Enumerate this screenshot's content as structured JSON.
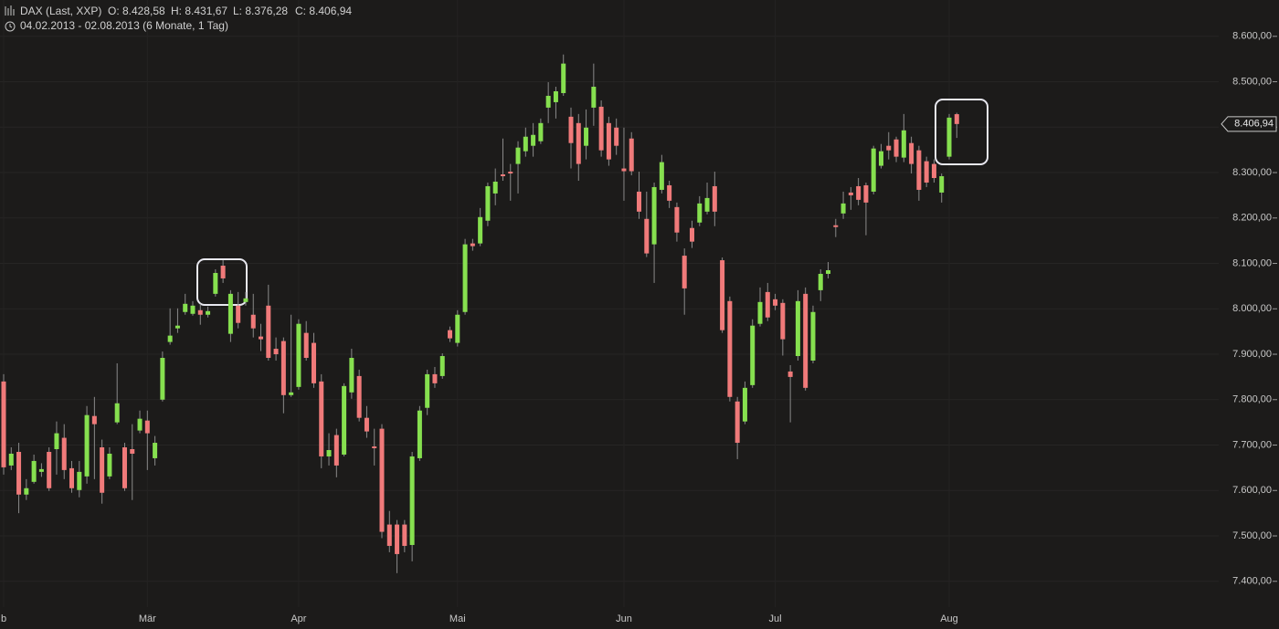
{
  "chart_data": {
    "type": "candlestick",
    "title": "DAX (Last, XXP)",
    "quote_labels": [
      "O: 8.428,58",
      "H: 8.431,67",
      "L: 8.376,28",
      "C: 8.406,94"
    ],
    "subtitle": "04.02.2013 - 02.08.2013 (6 Monate, 1 Tag)",
    "last_label": "8.406,94",
    "up_color": "#86e04f",
    "down_color": "#f07a7a",
    "wick_color": "#8a8a8a",
    "grid": true,
    "ylim": [
      7295,
      8680
    ],
    "yticks": [
      {
        "value": 7400,
        "label": "7.400,00"
      },
      {
        "value": 7500,
        "label": "7.500,00"
      },
      {
        "value": 7600,
        "label": "7.600,00"
      },
      {
        "value": 7700,
        "label": "7.700,00"
      },
      {
        "value": 7800,
        "label": "7.800,00"
      },
      {
        "value": 7900,
        "label": "7.900,00"
      },
      {
        "value": 8000,
        "label": "8.000,00"
      },
      {
        "value": 8100,
        "label": "8.100,00"
      },
      {
        "value": 8200,
        "label": "8.200,00"
      },
      {
        "value": 8300,
        "label": "8.300,00"
      },
      {
        "value": 8400,
        "label": "8.400,00"
      },
      {
        "value": 8500,
        "label": "8.500,00"
      },
      {
        "value": 8600,
        "label": "8.600,00"
      }
    ],
    "categories": [
      "b",
      null,
      null,
      null,
      null,
      null,
      null,
      null,
      null,
      null,
      null,
      null,
      null,
      null,
      null,
      null,
      null,
      null,
      null,
      "Mär",
      null,
      null,
      null,
      null,
      null,
      null,
      null,
      null,
      null,
      null,
      null,
      null,
      null,
      null,
      null,
      null,
      null,
      null,
      null,
      "Apr",
      null,
      null,
      null,
      null,
      null,
      null,
      null,
      null,
      null,
      null,
      null,
      null,
      null,
      null,
      null,
      null,
      null,
      null,
      null,
      null,
      "Mai",
      null,
      null,
      null,
      null,
      null,
      null,
      null,
      null,
      null,
      null,
      null,
      null,
      null,
      null,
      null,
      null,
      null,
      null,
      null,
      null,
      null,
      "Jun",
      null,
      null,
      null,
      null,
      null,
      null,
      null,
      null,
      null,
      null,
      null,
      null,
      null,
      null,
      null,
      null,
      null,
      null,
      null,
      "Jul",
      null,
      null,
      null,
      null,
      null,
      null,
      null,
      null,
      null,
      null,
      null,
      null,
      null,
      null,
      null,
      null,
      null,
      null,
      null,
      null,
      null,
      null,
      "Aug",
      null
    ],
    "open": [
      7840,
      7655,
      7685,
      7591,
      7619,
      7641,
      7685,
      7691,
      7716,
      7649,
      7601,
      7631,
      7764,
      7695,
      7631,
      7750,
      7695,
      7691,
      7732,
      7754,
      7671,
      7800,
      7927,
      7957,
      7993,
      7989,
      7997,
      7987,
      8033,
      8095,
      7945,
      8007,
      8015,
      7987,
      7939,
      8007,
      7912,
      7929,
      7810,
      7828,
      7947,
      7925,
      7840,
      7675,
      7722,
      7679,
      7816,
      7852,
      7760,
      7697,
      7736,
      7525,
      7525,
      7525,
      7480,
      7671,
      7782,
      7856,
      7852,
      7953,
      7925,
      7993,
      8144,
      8144,
      8194,
      8254,
      8296,
      8302,
      8319,
      8347,
      8359,
      8369,
      8443,
      8455,
      8475,
      8423,
      8409,
      8359,
      8443,
      8445,
      8409,
      8399,
      8309,
      8375,
      8258,
      8198,
      8142,
      8262,
      8272,
      8224,
      8117,
      8178,
      8190,
      8214,
      8270,
      8107,
      8017,
      7796,
      7752,
      7832,
      7967,
      8037,
      8021,
      8013,
      7862,
      7896,
      8033,
      7886,
      8041,
      8077,
      8184,
      8210,
      8256,
      8270,
      8272,
      8258,
      8315,
      8359,
      8373,
      8333,
      8365,
      8349,
      8325,
      8319,
      8256,
      8335,
      8428.58
    ],
    "high": [
      7856,
      7695,
      7705,
      7625,
      7679,
      7660,
      7695,
      7752,
      7746,
      7665,
      7665,
      7786,
      7806,
      7712,
      7695,
      7880,
      7705,
      7746,
      7776,
      7776,
      7720,
      7906,
      8001,
      8001,
      8033,
      8017,
      8011,
      8005,
      8087,
      8107,
      8041,
      8037,
      8037,
      8033,
      7967,
      8053,
      7937,
      7937,
      7987,
      7977,
      7973,
      7947,
      7856,
      7726,
      7736,
      7836,
      7912,
      7866,
      7786,
      7736,
      7746,
      7555,
      7535,
      7535,
      7685,
      7786,
      7866,
      7872,
      7902,
      7961,
      7997,
      8154,
      8154,
      8222,
      8278,
      8309,
      8375,
      8319,
      8369,
      8399,
      8409,
      8419,
      8499,
      8489,
      8560,
      8443,
      8429,
      8439,
      8540,
      8459,
      8423,
      8419,
      8399,
      8389,
      8302,
      8258,
      8278,
      8339,
      8282,
      8234,
      8133,
      8194,
      8248,
      8278,
      8302,
      8113,
      8027,
      7806,
      7840,
      7977,
      8047,
      8057,
      8033,
      8021,
      7876,
      8041,
      8047,
      8007,
      8087,
      8103,
      8198,
      8258,
      8268,
      8288,
      8278,
      8359,
      8363,
      8389,
      8379,
      8429,
      8379,
      8359,
      8335,
      8329,
      8298,
      8429,
      8431.67
    ],
    "low": [
      7635,
      7645,
      7550,
      7579,
      7615,
      7630,
      7599,
      7635,
      7625,
      7595,
      7585,
      7615,
      7625,
      7571,
      7625,
      7746,
      7599,
      7579,
      7726,
      7645,
      7655,
      7796,
      7921,
      7947,
      7987,
      7985,
      7965,
      7981,
      8027,
      8057,
      7927,
      7957,
      8007,
      7937,
      7907,
      7886,
      7886,
      7770,
      7806,
      7822,
      7886,
      7826,
      7649,
      7655,
      7629,
      7675,
      7802,
      7752,
      7716,
      7655,
      7495,
      7464,
      7418,
      7464,
      7444,
      7665,
      7766,
      7826,
      7846,
      7927,
      7917,
      7987,
      8128,
      8138,
      8182,
      8228,
      8282,
      8238,
      8254,
      8335,
      8335,
      8363,
      8409,
      8419,
      8469,
      8309,
      8282,
      8329,
      8403,
      8335,
      8315,
      8339,
      8238,
      8294,
      8198,
      8114,
      8057,
      8254,
      8222,
      8148,
      7987,
      8134,
      8182,
      8208,
      8182,
      7947,
      7796,
      7669,
      7746,
      7826,
      7961,
      7973,
      7997,
      7897,
      7750,
      7886,
      7820,
      7880,
      8017,
      8067,
      8158,
      8198,
      8218,
      8228,
      8162,
      8252,
      8309,
      8329,
      8323,
      8323,
      8298,
      8238,
      8268,
      8278,
      8234,
      8329,
      8376.28
    ],
    "close": [
      7651,
      7681,
      7591,
      7605,
      7665,
      7647,
      7605,
      7726,
      7645,
      7605,
      7641,
      7766,
      7746,
      7595,
      7681,
      7792,
      7605,
      7681,
      7758,
      7726,
      7705,
      7892,
      7941,
      7963,
      8011,
      8007,
      7987,
      7995,
      8079,
      8067,
      8033,
      7969,
      8023,
      7957,
      7933,
      7892,
      7900,
      7810,
      7816,
      7967,
      7892,
      7836,
      7675,
      7689,
      7655,
      7830,
      7892,
      7760,
      7730,
      7693,
      7509,
      7478,
      7460,
      7478,
      7675,
      7776,
      7856,
      7836,
      7896,
      7935,
      7987,
      8142,
      8138,
      8202,
      8270,
      8280,
      8292,
      8298,
      8355,
      8379,
      8383,
      8409,
      8469,
      8479,
      8540,
      8365,
      8319,
      8399,
      8489,
      8349,
      8329,
      8359,
      8303,
      8303,
      8214,
      8122,
      8268,
      8323,
      8238,
      8168,
      8045,
      8148,
      8232,
      8244,
      8214,
      7953,
      7806,
      7705,
      7826,
      7963,
      8015,
      7981,
      8007,
      7933,
      7850,
      8017,
      7826,
      7993,
      8077,
      8085,
      8180,
      8232,
      8250,
      8240,
      8234,
      8353,
      8347,
      8349,
      8335,
      8393,
      8319,
      8262,
      8278,
      8288,
      8292,
      8421,
      8406.94
    ]
  }
}
